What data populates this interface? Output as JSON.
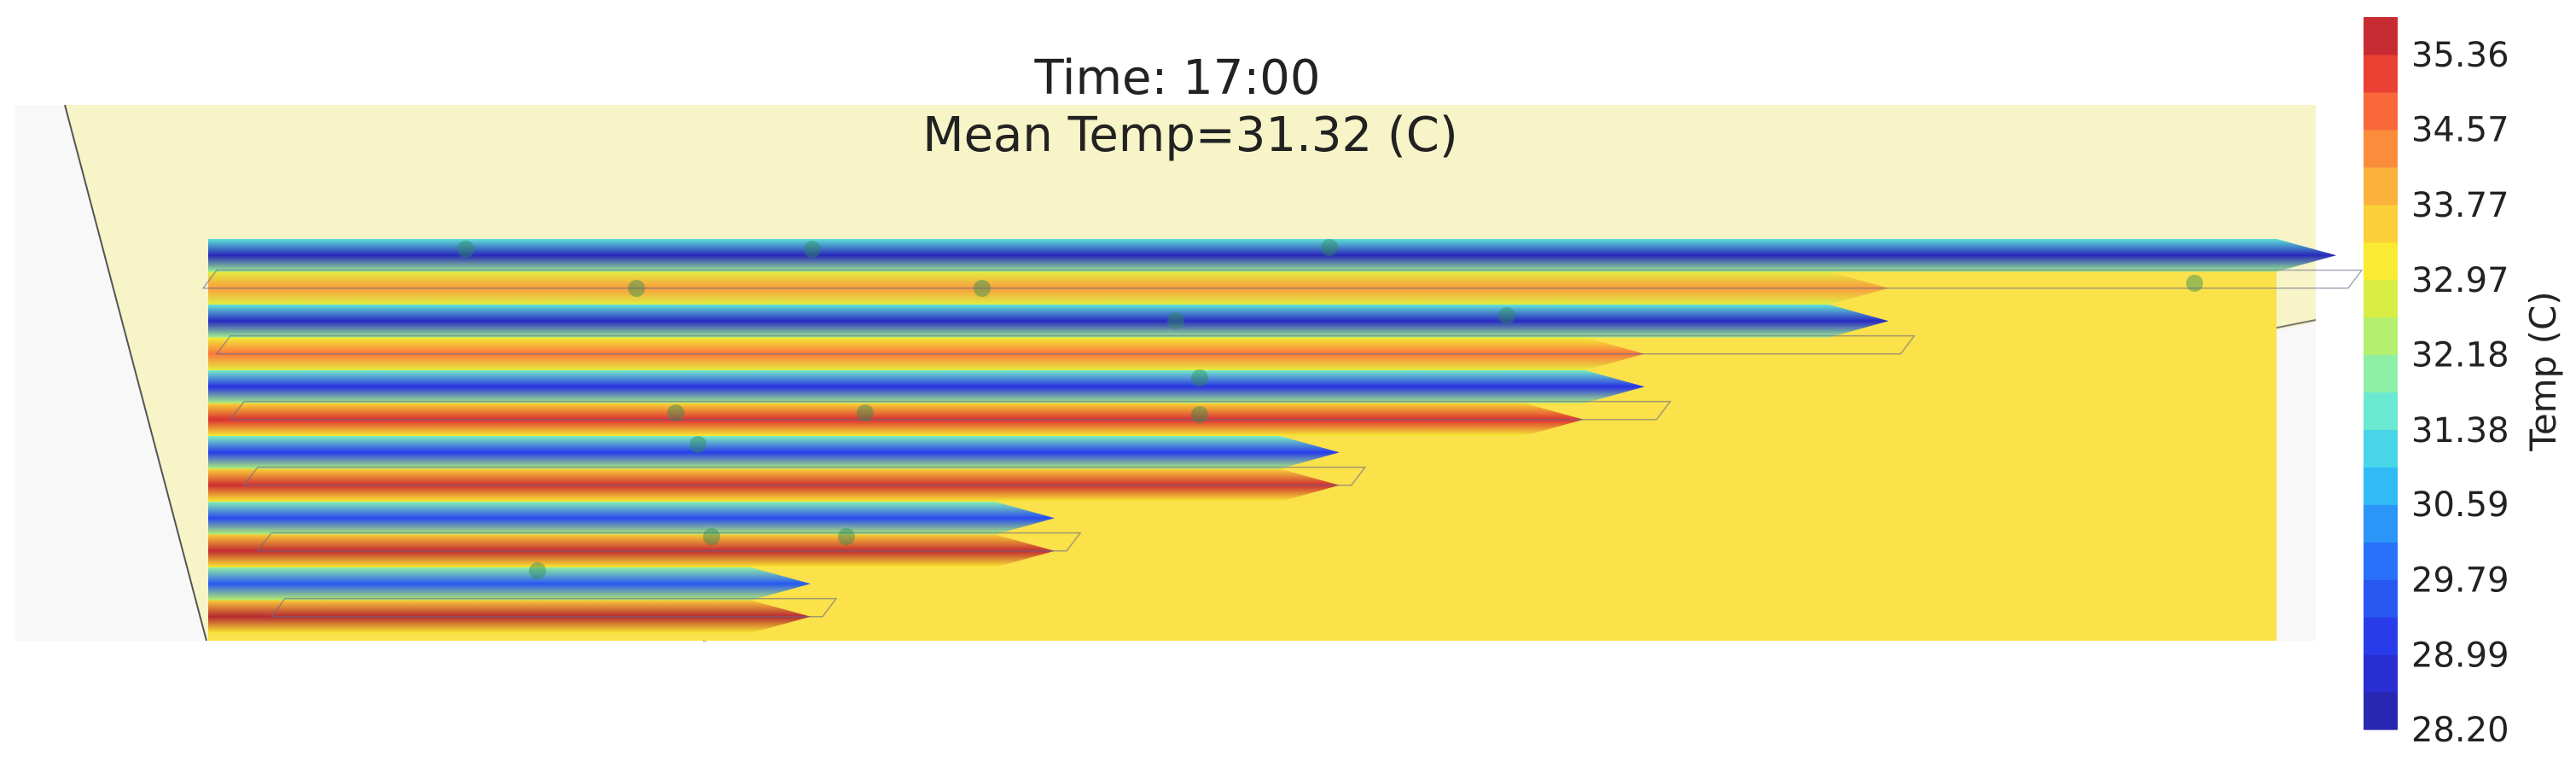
{
  "title": {
    "line1": "Time: 17:00",
    "line2": "Mean Temp=31.32 (C)"
  },
  "chart_data": {
    "type": "heatmap",
    "title": "Time: 17:00",
    "subtitle": "Mean Temp=31.32 (C)",
    "mean_temp": 31.32,
    "colorbar": {
      "label": "Temp (C)",
      "min": 28.2,
      "max": 35.76,
      "tick_values": [
        28.2,
        28.99,
        29.79,
        30.59,
        31.38,
        32.18,
        32.97,
        33.77,
        34.57,
        35.36
      ],
      "tick_labels": [
        "28.20",
        "28.99",
        "29.79",
        "30.59",
        "31.38",
        "32.18",
        "32.97",
        "33.77",
        "34.57",
        "35.36"
      ],
      "colormap": "jet",
      "levels": 19
    },
    "background_temp": 32.8,
    "pipe_rows": [
      {
        "row": 1,
        "kind": "cold",
        "core_temp": 28.5,
        "extent": 1.0
      },
      {
        "row": 2,
        "kind": "hot",
        "core_temp": 34.2,
        "extent": 0.78
      },
      {
        "row": 3,
        "kind": "cold",
        "core_temp": 28.6,
        "extent": 0.78
      },
      {
        "row": 4,
        "kind": "hot",
        "core_temp": 34.6,
        "extent": 0.66
      },
      {
        "row": 5,
        "kind": "cold",
        "core_temp": 29.0,
        "extent": 0.66
      },
      {
        "row": 6,
        "kind": "hot",
        "core_temp": 35.4,
        "extent": 0.63
      },
      {
        "row": 7,
        "kind": "cold",
        "core_temp": 29.2,
        "extent": 0.51
      },
      {
        "row": 8,
        "kind": "hot",
        "core_temp": 35.5,
        "extent": 0.51
      },
      {
        "row": 9,
        "kind": "cold",
        "core_temp": 29.4,
        "extent": 0.37
      },
      {
        "row": 10,
        "kind": "hot",
        "core_temp": 35.6,
        "extent": 0.37
      },
      {
        "row": 11,
        "kind": "cold",
        "core_temp": 29.6,
        "extent": 0.25
      },
      {
        "row": 12,
        "kind": "hot",
        "core_temp": 35.7,
        "extent": 0.25
      }
    ],
    "sensor_count": 21
  }
}
